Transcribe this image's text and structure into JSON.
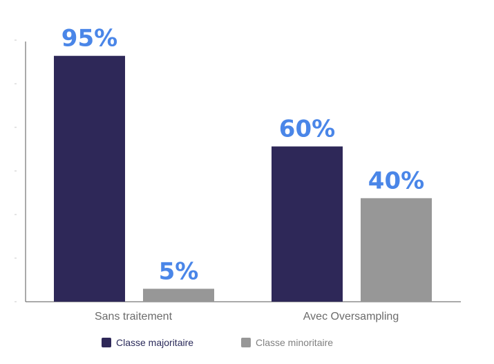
{
  "chart_data": {
    "type": "bar",
    "title": "",
    "xlabel": "",
    "ylabel": "",
    "categories": [
      "Sans traitement",
      "Avec Oversampling"
    ],
    "series": [
      {
        "name": "Classe majoritaire",
        "values": [
          95,
          60
        ],
        "labels": [
          "95%",
          "60%"
        ],
        "color": "#2e2858"
      },
      {
        "name": "Classe minoritaire",
        "values": [
          5,
          40
        ],
        "labels": [
          "5%",
          "40%"
        ],
        "color": "#979797"
      }
    ],
    "ylim": [
      0,
      100
    ],
    "label_color": "#4a86e8",
    "grid": false,
    "legend": "bottom"
  }
}
